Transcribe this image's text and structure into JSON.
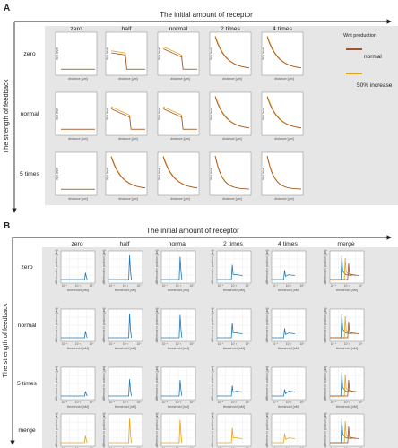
{
  "panel_a": {
    "label": "A",
    "top_title": "The initial amount of receptor",
    "side_title": "The strength of feedback",
    "columns": [
      "zero",
      "half",
      "normal",
      "2 times",
      "4 times"
    ],
    "rows": [
      "zero",
      "normal",
      "5 times"
    ],
    "ylabel": "Wnt level",
    "xlabel": "distance [μm]",
    "legend": {
      "title": "Wnt production",
      "entries": [
        {
          "label": "normal",
          "color": "#a0522d"
        },
        {
          "label": "50% increase",
          "color": "#e8a317"
        }
      ]
    }
  },
  "panel_b": {
    "label": "B",
    "top_title": "The initial amount of receptor",
    "side_title": "The strength of feedback",
    "columns": [
      "zero",
      "half",
      "normal",
      "2 times",
      "4 times",
      "merge"
    ],
    "rows": [
      "zero",
      "normal",
      "5 times",
      "merge"
    ],
    "ylabel": "difference in position [μm]",
    "xlabel": "threshold [nM]",
    "xtick_labels": [
      "10⁻⁴",
      "10⁻²",
      "10⁰"
    ]
  },
  "chart_data": [
    {
      "type": "line",
      "panel": "A",
      "x_label": "distance [μm]",
      "y_label": "Wnt level",
      "series": [
        {
          "name": "normal",
          "color": "#a0522d"
        },
        {
          "name": "50% increase",
          "color": "#e8a317"
        }
      ]
    },
    {
      "type": "line",
      "panel": "B",
      "x_label": "threshold [nM]",
      "y_label": "difference in position [μm]",
      "x_scale": "log",
      "colors": {
        "zero": "#1f77b4",
        "merge_mix": [
          "#1f77b4",
          "#e8a317",
          "#a0522d"
        ]
      }
    }
  ]
}
